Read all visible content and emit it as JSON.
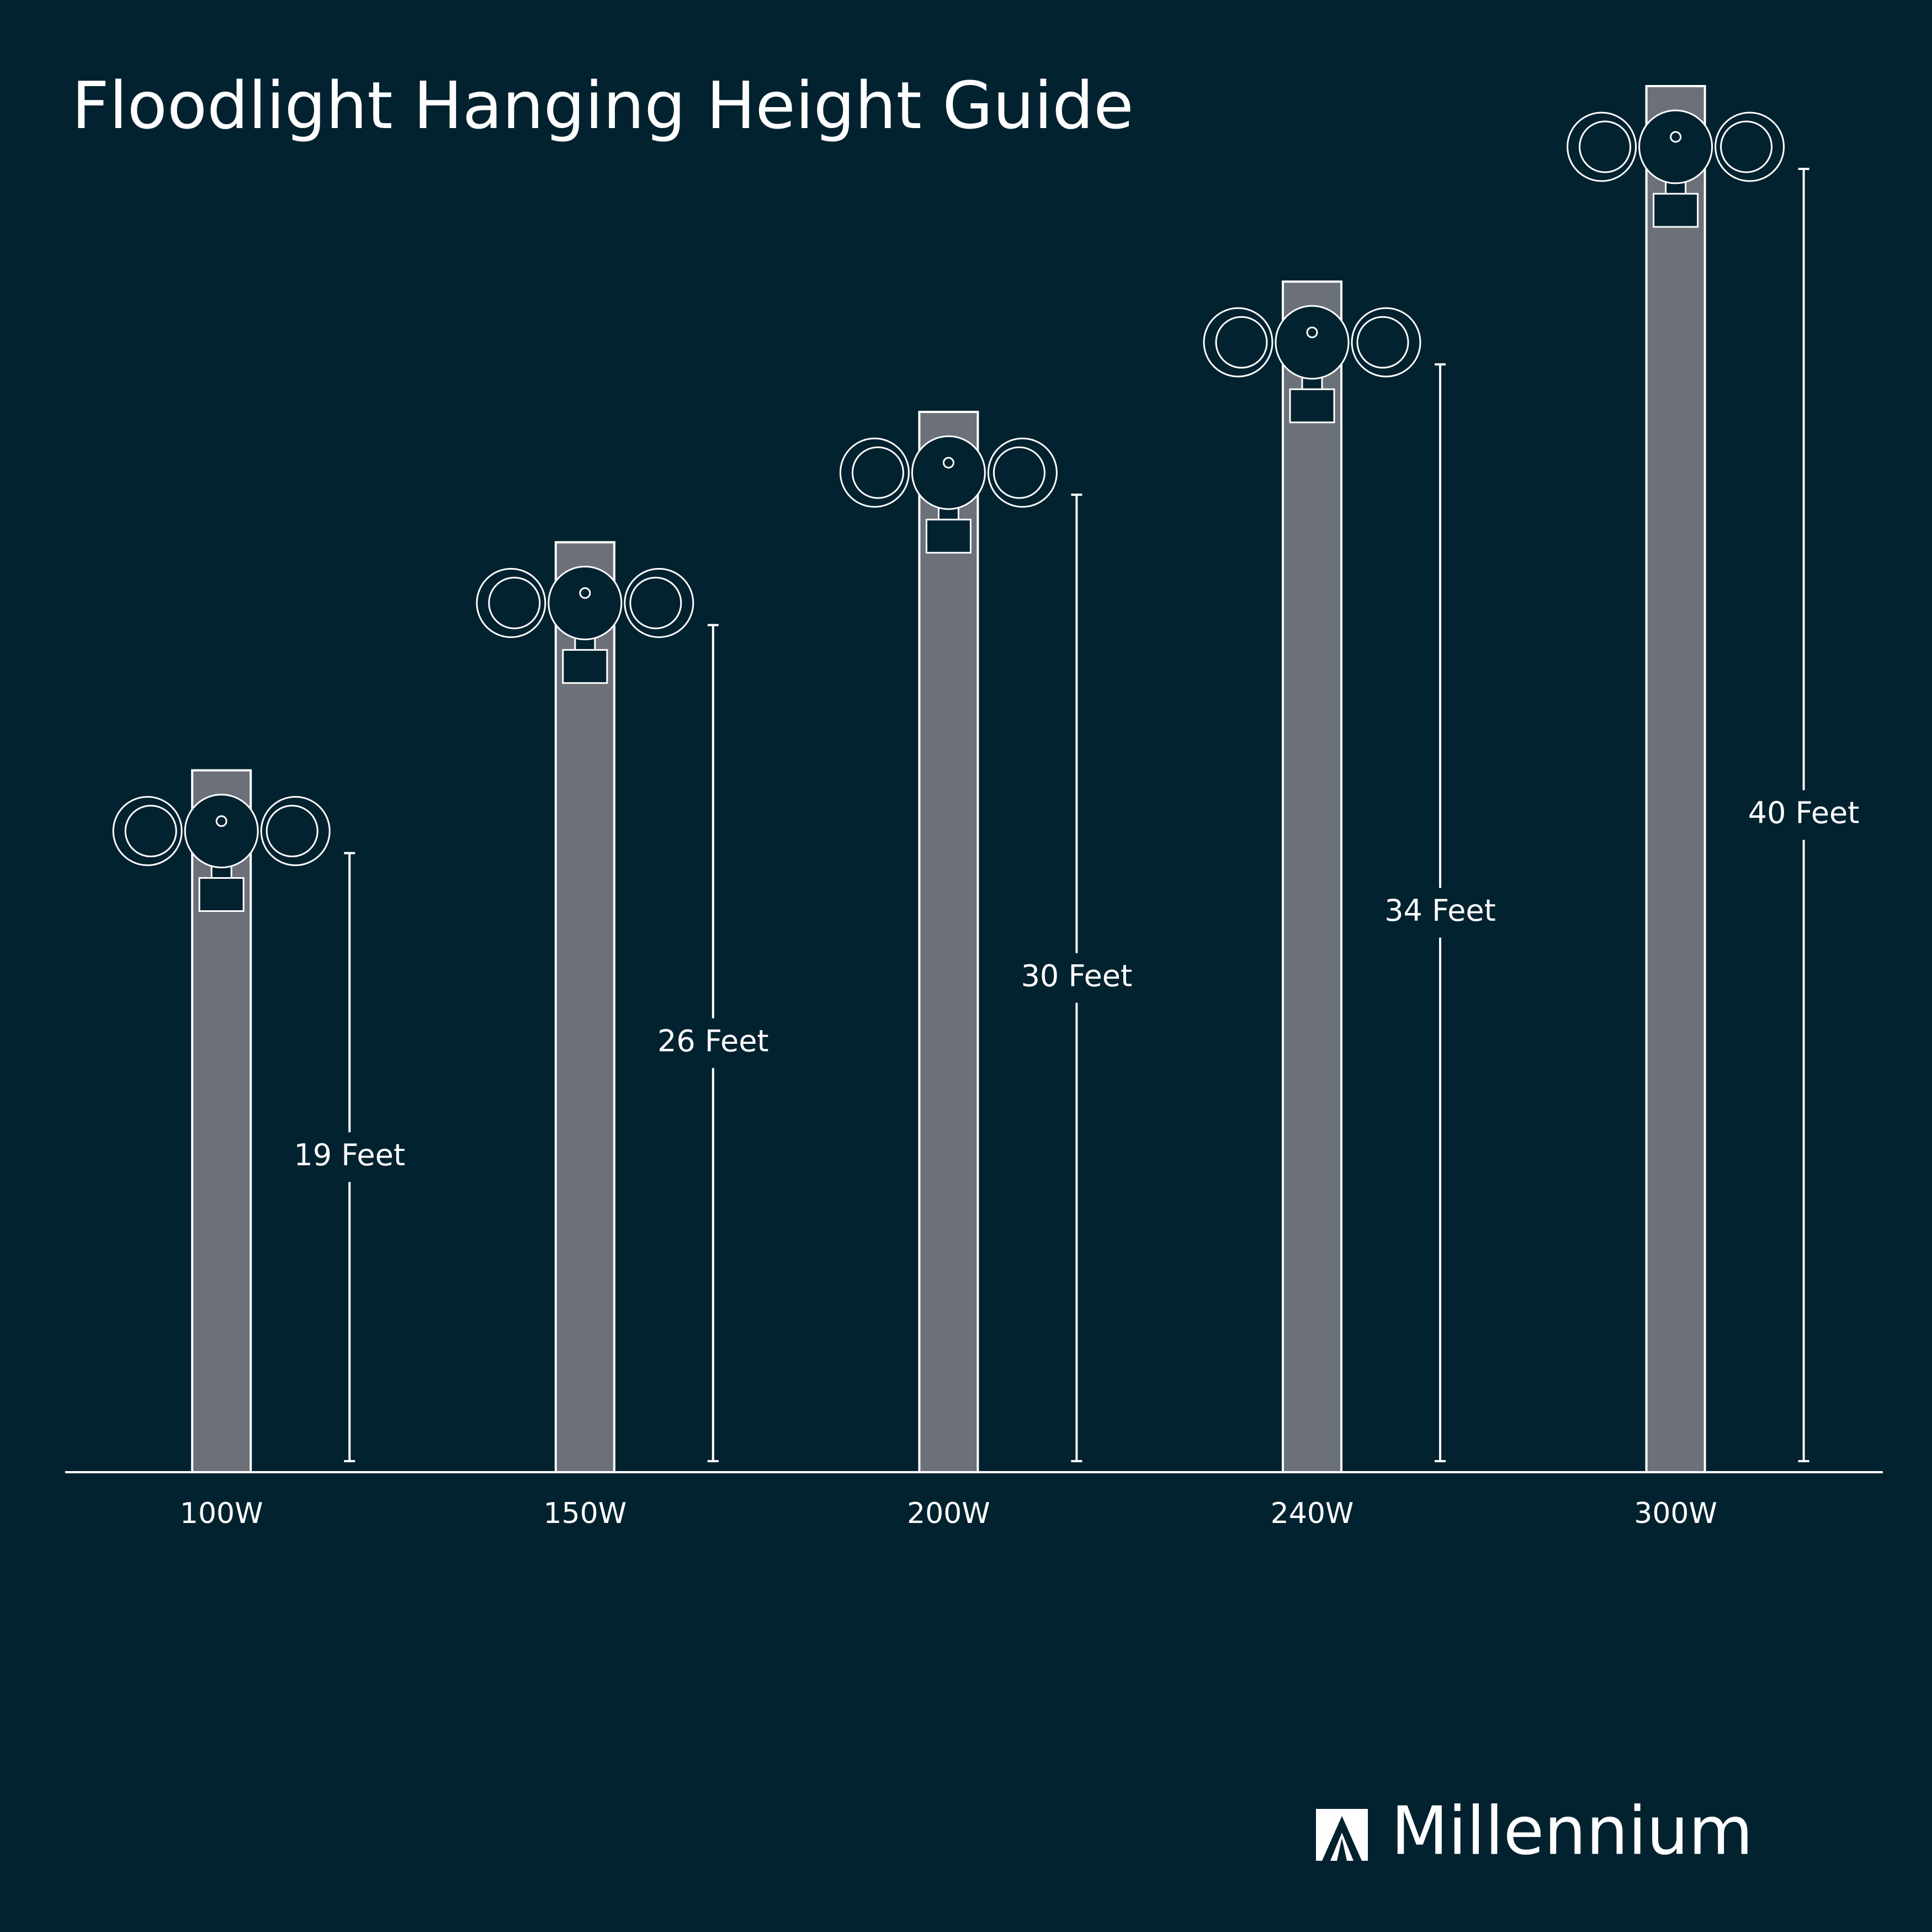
{
  "chart_data": {
    "type": "bar",
    "title": "Floodlight Hanging Height Guide",
    "categories": [
      "100W",
      "150W",
      "200W",
      "240W",
      "300W"
    ],
    "values": [
      19,
      26,
      30,
      34,
      40
    ],
    "value_labels": [
      "19 Feet",
      "26 Feet",
      "30 Feet",
      "34 Feet",
      "40 Feet"
    ],
    "color": "#6b7079"
  },
  "brand": "Millennium"
}
